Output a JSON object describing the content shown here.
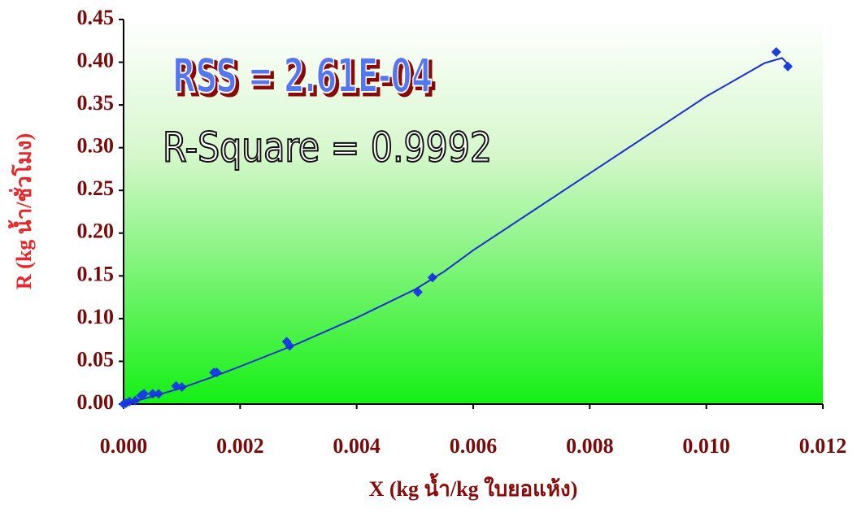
{
  "chart_data": {
    "type": "scatter",
    "x_label": "X (kg น้ำ/kg ใบยอแห้ง)",
    "y_label": "R (kg น้ำ/ชั่วโมง)",
    "annotations": [
      "RSS = 2.61E-04",
      "R-Square = 0.9992"
    ],
    "xlim": [
      0,
      0.012
    ],
    "ylim": [
      0,
      0.45
    ],
    "xticks": [
      {
        "value": 0,
        "label": "0.000"
      },
      {
        "value": 0.002,
        "label": "0.002"
      },
      {
        "value": 0.004,
        "label": "0.004"
      },
      {
        "value": 0.006,
        "label": "0.006"
      },
      {
        "value": 0.008,
        "label": "0.008"
      },
      {
        "value": 0.01,
        "label": "0.010"
      },
      {
        "value": 0.012,
        "label": "0.012"
      }
    ],
    "yticks": [
      {
        "value": 0,
        "label": "0.00"
      },
      {
        "value": 0.05,
        "label": "0.05"
      },
      {
        "value": 0.1,
        "label": "0.10"
      },
      {
        "value": 0.15,
        "label": "0.15"
      },
      {
        "value": 0.2,
        "label": "0.20"
      },
      {
        "value": 0.25,
        "label": "0.25"
      },
      {
        "value": 0.3,
        "label": "0.30"
      },
      {
        "value": 0.35,
        "label": "0.35"
      },
      {
        "value": 0.4,
        "label": "0.40"
      },
      {
        "value": 0.45,
        "label": "0.45"
      }
    ],
    "series": [
      {
        "kind": "points",
        "color": "#1a3fe0",
        "x": [
          0,
          4e-05,
          0.0001,
          0.0002,
          0.0003,
          0.00035,
          0.0005,
          0.0006,
          0.0009,
          0.001,
          0.00155,
          0.0016,
          0.0028,
          0.00285,
          0.00505,
          0.0053,
          0.0112,
          0.0114
        ],
        "values": [
          0,
          0.001,
          0.003,
          0.004,
          0.01,
          0.012,
          0.012,
          0.012,
          0.021,
          0.02,
          0.037,
          0.037,
          0.073,
          0.068,
          0.131,
          0.148,
          0.412,
          0.395
        ]
      },
      {
        "kind": "line",
        "color": "#1a2fd0",
        "x": [
          0,
          0.0005,
          0.001,
          0.0015,
          0.002,
          0.003,
          0.004,
          0.005,
          0.0055,
          0.006,
          0.007,
          0.008,
          0.009,
          0.01,
          0.011,
          0.0113,
          0.0114
        ],
        "values": [
          0,
          0.009,
          0.019,
          0.031,
          0.044,
          0.071,
          0.101,
          0.134,
          0.155,
          0.18,
          0.225,
          0.27,
          0.315,
          0.36,
          0.399,
          0.405,
          0.398
        ]
      }
    ]
  }
}
